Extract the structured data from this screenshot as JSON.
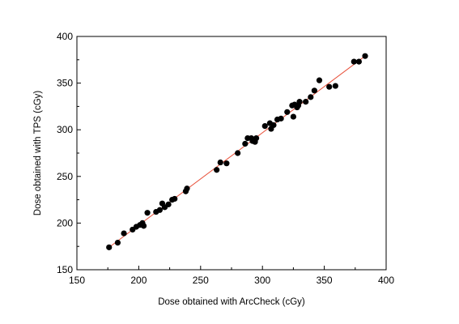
{
  "chart_data": {
    "type": "scatter",
    "title": "",
    "xlabel": "Dose obtained with ArcCheck (cGy)",
    "ylabel": "Dose obtained with TPS (cGy)",
    "xlim": [
      150,
      400
    ],
    "ylim": [
      150,
      400
    ],
    "xticks": [
      150,
      200,
      250,
      300,
      350,
      400
    ],
    "yticks": [
      150,
      200,
      250,
      300,
      350,
      400
    ],
    "grid": false,
    "legend": "none",
    "marker_color": "#000000",
    "fit_line_color": "#e8503a",
    "series": [
      {
        "points": [
          [
            176,
            174
          ],
          [
            183,
            179
          ],
          [
            188,
            189
          ],
          [
            195,
            193
          ],
          [
            198,
            196
          ],
          [
            201,
            198
          ],
          [
            203,
            200
          ],
          [
            204,
            197
          ],
          [
            207,
            211
          ],
          [
            214,
            212
          ],
          [
            217,
            214
          ],
          [
            219,
            221
          ],
          [
            221,
            217
          ],
          [
            224,
            220
          ],
          [
            227,
            225
          ],
          [
            229,
            226
          ],
          [
            238,
            234
          ],
          [
            239,
            237
          ],
          [
            263,
            257
          ],
          [
            266,
            265
          ],
          [
            271,
            264
          ],
          [
            280,
            275
          ],
          [
            286,
            285
          ],
          [
            288,
            291
          ],
          [
            291,
            291
          ],
          [
            292,
            288
          ],
          [
            294,
            287
          ],
          [
            295,
            291
          ],
          [
            302,
            304
          ],
          [
            306,
            307
          ],
          [
            307,
            301
          ],
          [
            309,
            305
          ],
          [
            312,
            311
          ],
          [
            315,
            312
          ],
          [
            320,
            319
          ],
          [
            324,
            326
          ],
          [
            325,
            314
          ],
          [
            326,
            327
          ],
          [
            328,
            324
          ],
          [
            329,
            326
          ],
          [
            330,
            330
          ],
          [
            335,
            330
          ],
          [
            339,
            335
          ],
          [
            342,
            342
          ],
          [
            346,
            353
          ],
          [
            354,
            346
          ],
          [
            359,
            347
          ],
          [
            374,
            373
          ],
          [
            378,
            373
          ],
          [
            383,
            379
          ]
        ]
      }
    ],
    "fit_line": {
      "x": [
        176,
        383
      ],
      "y": [
        174,
        379
      ]
    }
  }
}
